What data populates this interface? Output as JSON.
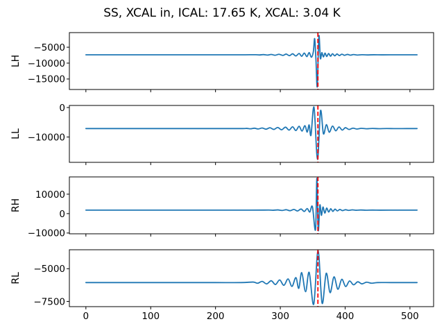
{
  "figure": {
    "title": "SS, XCAL in, ICAL: 17.65 K, XCAL: 3.04 K",
    "colors": {
      "signal_line": "#1f77b4",
      "cal_marker": "#ff0000",
      "axis": "#000000",
      "text": "#000000",
      "background": "#ffffff"
    }
  },
  "chart_data": {
    "type": "line",
    "title": "SS, XCAL in, ICAL: 17.65 K, XCAL: 3.04 K",
    "grid": false,
    "legend": "none",
    "x_axis": {
      "xlim": [
        -25.5,
        536.5
      ],
      "ticks": [
        {
          "v": 0,
          "label": "0"
        },
        {
          "v": 100,
          "label": "100"
        },
        {
          "v": 200,
          "label": "200"
        },
        {
          "v": 300,
          "label": "300"
        },
        {
          "v": 400,
          "label": "400"
        },
        {
          "v": 500,
          "label": "500"
        }
      ]
    },
    "subplots": [
      {
        "ylabel": "LH",
        "ylim": [
          -18300,
          -400
        ],
        "yticks": [
          {
            "v": -5000,
            "label": "−5000"
          },
          {
            "v": -10000,
            "label": "−10000"
          },
          {
            "v": -15000,
            "label": "−15000"
          }
        ],
        "baseline": -7390,
        "marker_x": 358,
        "series": [
          [
            0,
            -7390
          ],
          [
            70,
            -7390
          ],
          [
            140,
            -7390
          ],
          [
            200,
            -7390
          ],
          [
            240,
            -7390
          ],
          [
            262,
            -7350
          ],
          [
            268,
            -7430
          ],
          [
            274,
            -7320
          ],
          [
            280,
            -7470
          ],
          [
            286,
            -7280
          ],
          [
            292,
            -7520
          ],
          [
            298,
            -7220
          ],
          [
            304,
            -7580
          ],
          [
            309,
            -7150
          ],
          [
            314,
            -7650
          ],
          [
            319,
            -7070
          ],
          [
            324,
            -7740
          ],
          [
            329,
            -6970
          ],
          [
            333,
            -7840
          ],
          [
            337,
            -6850
          ],
          [
            341,
            -7960
          ],
          [
            344.5,
            -6680
          ],
          [
            348,
            -8150
          ],
          [
            351,
            -6350
          ],
          [
            353,
            -2300
          ],
          [
            355,
            -9000
          ],
          [
            357,
            -17400
          ],
          [
            359.5,
            -1500
          ],
          [
            361.8,
            -8500
          ],
          [
            364,
            -6700
          ],
          [
            366.5,
            -8050
          ],
          [
            369,
            -6850
          ],
          [
            371.5,
            -7920
          ],
          [
            374.5,
            -6980
          ],
          [
            377.5,
            -7820
          ],
          [
            380.5,
            -7060
          ],
          [
            384,
            -7700
          ],
          [
            387.5,
            -7130
          ],
          [
            391,
            -7620
          ],
          [
            395,
            -7200
          ],
          [
            399,
            -7550
          ],
          [
            403.5,
            -7260
          ],
          [
            408,
            -7500
          ],
          [
            413,
            -7310
          ],
          [
            419,
            -7460
          ],
          [
            426,
            -7350
          ],
          [
            434,
            -7430
          ],
          [
            444,
            -7370
          ],
          [
            456,
            -7400
          ],
          [
            470,
            -7390
          ],
          [
            490,
            -7390
          ],
          [
            511,
            -7390
          ]
        ]
      },
      {
        "ylabel": "LL",
        "ylim": [
          -18600,
          700
        ],
        "yticks": [
          {
            "v": 0,
            "label": "0"
          },
          {
            "v": -10000,
            "label": "−10000"
          }
        ],
        "baseline": -7140,
        "marker_x": 358,
        "series": [
          [
            0,
            -7140
          ],
          [
            70,
            -7140
          ],
          [
            140,
            -7140
          ],
          [
            200,
            -7140
          ],
          [
            240,
            -7140
          ],
          [
            248,
            -7080
          ],
          [
            254,
            -7220
          ],
          [
            260,
            -7020
          ],
          [
            266,
            -7280
          ],
          [
            272,
            -6950
          ],
          [
            278,
            -7350
          ],
          [
            284,
            -6870
          ],
          [
            290,
            -7440
          ],
          [
            296,
            -6780
          ],
          [
            302,
            -7540
          ],
          [
            308,
            -6670
          ],
          [
            313.5,
            -7660
          ],
          [
            319,
            -6540
          ],
          [
            324,
            -7810
          ],
          [
            329,
            -6380
          ],
          [
            333.5,
            -8000
          ],
          [
            338,
            -6150
          ],
          [
            341.5,
            -8350
          ],
          [
            344.5,
            -5900
          ],
          [
            347.3,
            -9400
          ],
          [
            352,
            50
          ],
          [
            357.3,
            -17600
          ],
          [
            362,
            -1100
          ],
          [
            366.5,
            -8900
          ],
          [
            371,
            -5800
          ],
          [
            375.5,
            -8400
          ],
          [
            380.5,
            -6300
          ],
          [
            385.5,
            -7900
          ],
          [
            390.5,
            -6600
          ],
          [
            395.5,
            -7650
          ],
          [
            400.5,
            -6850
          ],
          [
            406,
            -7450
          ],
          [
            412,
            -7000
          ],
          [
            418,
            -7300
          ],
          [
            425,
            -7060
          ],
          [
            433,
            -7220
          ],
          [
            442,
            -7100
          ],
          [
            452,
            -7180
          ],
          [
            464,
            -7120
          ],
          [
            478,
            -7160
          ],
          [
            495,
            -7140
          ],
          [
            511,
            -7140
          ]
        ]
      },
      {
        "ylabel": "RH",
        "ylim": [
          -10400,
          18900
        ],
        "yticks": [
          {
            "v": 10000,
            "label": "10000"
          },
          {
            "v": 0,
            "label": "0"
          },
          {
            "v": -10000,
            "label": "−10000"
          }
        ],
        "baseline": 1790,
        "marker_x": 358,
        "series": [
          [
            0,
            1790
          ],
          [
            70,
            1790
          ],
          [
            140,
            1790
          ],
          [
            200,
            1790
          ],
          [
            250,
            1790
          ],
          [
            282,
            1830
          ],
          [
            289,
            1720
          ],
          [
            296,
            1900
          ],
          [
            303,
            1620
          ],
          [
            309,
            2000
          ],
          [
            315,
            1500
          ],
          [
            321,
            2150
          ],
          [
            326.5,
            1350
          ],
          [
            332,
            2350
          ],
          [
            337,
            1120
          ],
          [
            341.5,
            2600
          ],
          [
            345.5,
            800
          ],
          [
            349.5,
            3600
          ],
          [
            354.3,
            -8300
          ],
          [
            356.4,
            18200
          ],
          [
            358.5,
            -8600
          ],
          [
            361,
            4400
          ],
          [
            363.3,
            -900
          ],
          [
            365.8,
            3400
          ],
          [
            368.6,
            250
          ],
          [
            371.5,
            2850
          ],
          [
            374.6,
            820
          ],
          [
            377.8,
            2520
          ],
          [
            381,
            1150
          ],
          [
            384.4,
            2300
          ],
          [
            388,
            1380
          ],
          [
            391.8,
            2130
          ],
          [
            396,
            1540
          ],
          [
            400.5,
            2000
          ],
          [
            405.5,
            1650
          ],
          [
            411,
            1930
          ],
          [
            417,
            1720
          ],
          [
            424,
            1860
          ],
          [
            432,
            1750
          ],
          [
            442,
            1820
          ],
          [
            454,
            1770
          ],
          [
            468,
            1800
          ],
          [
            485,
            1790
          ],
          [
            511,
            1790
          ]
        ]
      },
      {
        "ylabel": "RL",
        "ylim": [
          -7900,
          -3550
        ],
        "yticks": [
          {
            "v": -5000,
            "label": "−5000"
          },
          {
            "v": -7500,
            "label": "−7500"
          }
        ],
        "baseline": -6060,
        "marker_x": 358,
        "series": [
          [
            0,
            -6060
          ],
          [
            70,
            -6060
          ],
          [
            140,
            -6060
          ],
          [
            200,
            -6060
          ],
          [
            240,
            -6060
          ],
          [
            258,
            -6020
          ],
          [
            265,
            -6110
          ],
          [
            272,
            -5970
          ],
          [
            279,
            -6160
          ],
          [
            286,
            -5920
          ],
          [
            292.5,
            -6210
          ],
          [
            299,
            -5860
          ],
          [
            305.5,
            -6270
          ],
          [
            312,
            -5780
          ],
          [
            318,
            -6350
          ],
          [
            324,
            -5680
          ],
          [
            328.5,
            -6500
          ],
          [
            333,
            -5300
          ],
          [
            339,
            -6760
          ],
          [
            344.5,
            -5280
          ],
          [
            351.5,
            -7720
          ],
          [
            358.2,
            -3620
          ],
          [
            364.5,
            -7640
          ],
          [
            370.8,
            -5350
          ],
          [
            376.8,
            -6830
          ],
          [
            382.8,
            -5620
          ],
          [
            388.8,
            -6570
          ],
          [
            394.8,
            -5810
          ],
          [
            400.8,
            -6360
          ],
          [
            406.8,
            -5940
          ],
          [
            413,
            -6230
          ],
          [
            419.5,
            -6000
          ],
          [
            426,
            -6160
          ],
          [
            433,
            -6030
          ],
          [
            441,
            -6110
          ],
          [
            450,
            -6060
          ],
          [
            470,
            -6060
          ],
          [
            490,
            -6060
          ],
          [
            511,
            -6060
          ]
        ]
      }
    ]
  }
}
